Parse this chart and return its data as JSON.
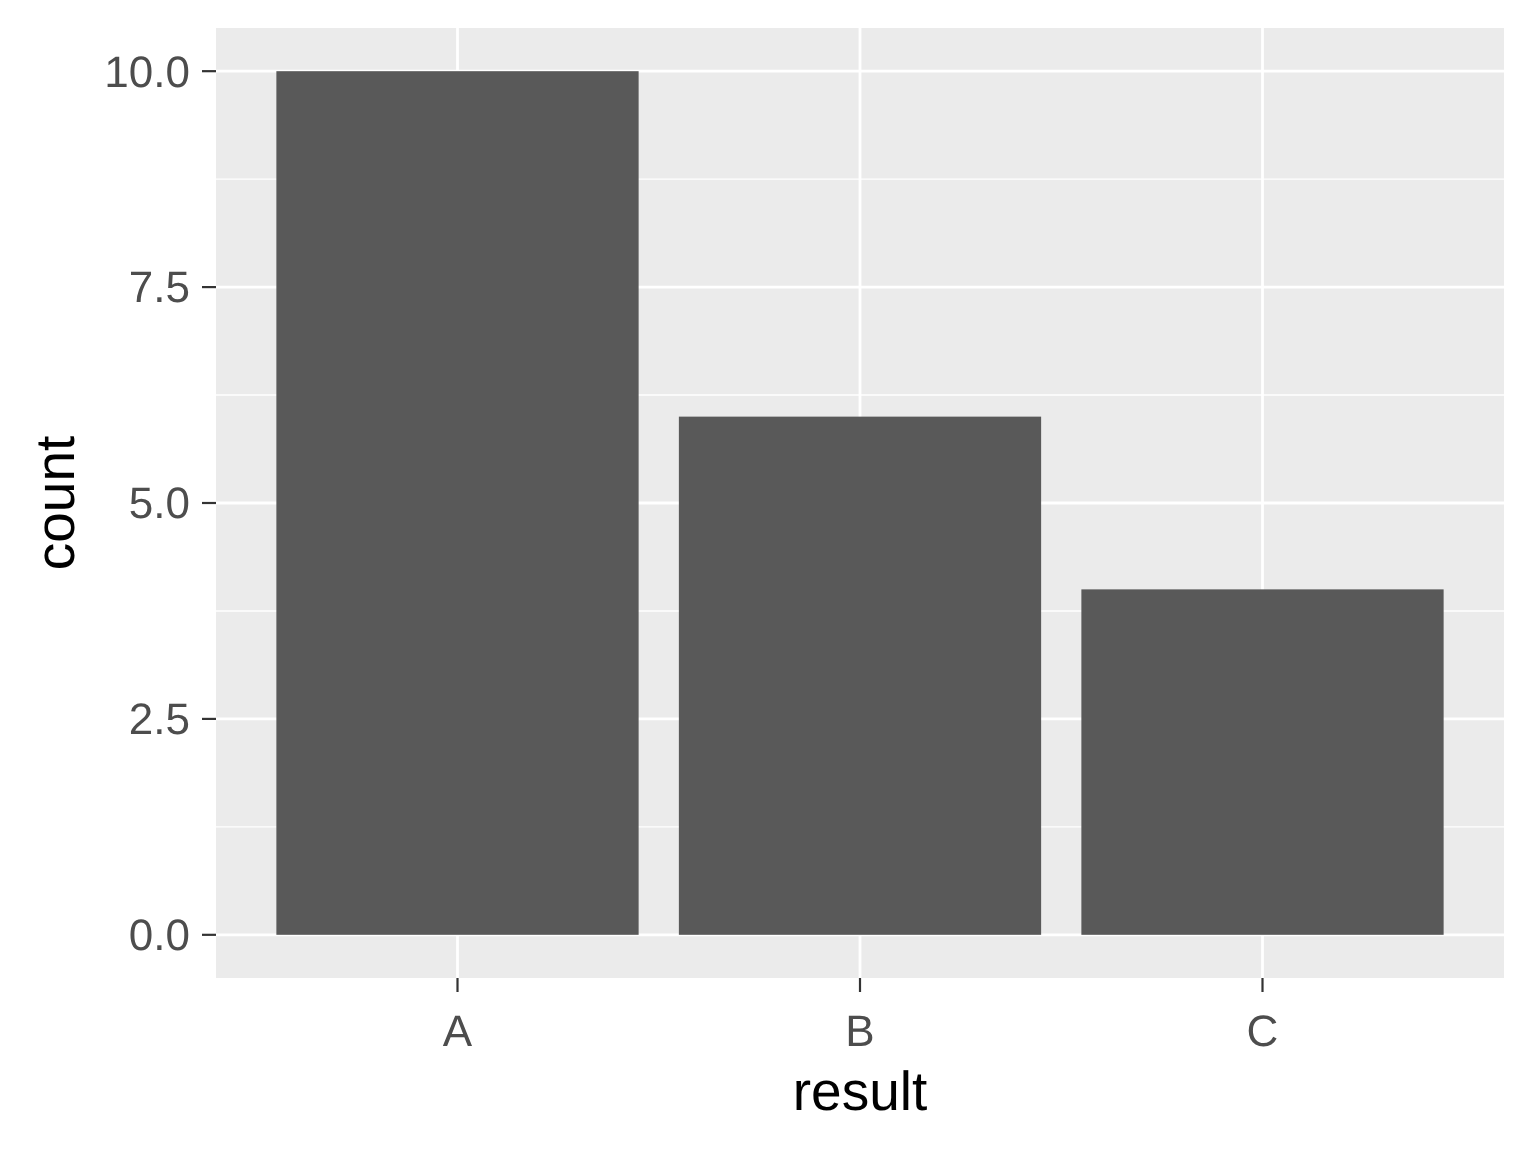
{
  "chart_data": {
    "type": "bar",
    "xlabel": "result",
    "ylabel": "count",
    "categories": [
      "A",
      "B",
      "C"
    ],
    "values": [
      10,
      6,
      4
    ],
    "color": "#595959",
    "ylim": [
      -0.5,
      10.5
    ],
    "yticks": [
      {
        "value": 0,
        "label": "0.0"
      },
      {
        "value": 2.5,
        "label": "2.5"
      },
      {
        "value": 5,
        "label": "5.0"
      },
      {
        "value": 7.5,
        "label": "7.5"
      },
      {
        "value": 10,
        "label": "10.0"
      }
    ],
    "grid": true
  }
}
